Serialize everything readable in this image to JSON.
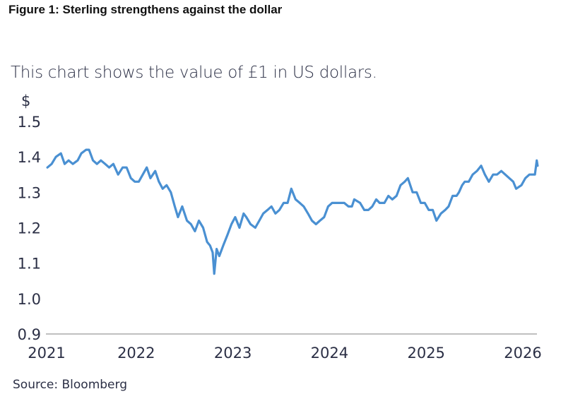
{
  "chart_data": {
    "type": "line",
    "title": "Figure 1: Sterling strengthens against the dollar",
    "subtitle": "This chart shows the value of £1 in US dollars.",
    "ylabel": "$",
    "xlabel": "",
    "source": "Source: Bloomberg",
    "ylim": [
      0.9,
      1.5
    ],
    "yticks": [
      "0.9",
      "1.0",
      "1.1",
      "1.2",
      "1.3",
      "1.4",
      "1.5"
    ],
    "xticks": [
      "2021",
      "2022",
      "2023",
      "2024",
      "2025",
      "2026"
    ],
    "grid": false,
    "line_color": "#4a90d2",
    "series": [
      {
        "x": [
          "2021-01-04",
          "2021-01-20",
          "2021-02-05",
          "2021-02-24",
          "2021-03-10",
          "2021-03-25",
          "2021-04-10",
          "2021-04-28",
          "2021-05-12",
          "2021-05-30",
          "2021-06-10",
          "2021-06-25",
          "2021-07-10",
          "2021-07-25",
          "2021-08-10",
          "2021-08-25",
          "2021-09-10",
          "2021-09-28",
          "2021-10-15",
          "2021-10-30",
          "2021-11-15",
          "2021-11-30",
          "2021-12-15",
          "2021-12-30",
          "2022-01-14",
          "2022-01-28",
          "2022-02-15",
          "2022-03-01",
          "2022-03-15",
          "2022-03-30",
          "2022-04-15",
          "2022-04-30",
          "2022-05-12",
          "2022-05-28",
          "2022-06-15",
          "2022-06-30",
          "2022-07-15",
          "2022-07-30",
          "2022-08-15",
          "2022-08-30",
          "2022-09-10",
          "2022-09-20",
          "2022-09-26",
          "2022-10-05",
          "2022-10-15",
          "2022-10-30",
          "2022-11-15",
          "2022-11-30",
          "2022-12-14",
          "2022-12-30",
          "2023-01-15",
          "2023-01-25",
          "2023-02-10",
          "2023-02-28",
          "2023-03-15",
          "2023-03-30",
          "2023-04-15",
          "2023-04-30",
          "2023-05-15",
          "2023-05-30",
          "2023-06-15",
          "2023-06-30",
          "2023-07-14",
          "2023-07-30",
          "2023-08-15",
          "2023-08-30",
          "2023-09-15",
          "2023-09-30",
          "2023-10-15",
          "2023-10-30",
          "2023-11-15",
          "2023-11-30",
          "2023-12-15",
          "2023-12-30",
          "2024-01-15",
          "2024-01-30",
          "2024-02-15",
          "2024-02-28",
          "2024-03-08",
          "2024-03-30",
          "2024-04-15",
          "2024-04-30",
          "2024-05-15",
          "2024-05-30",
          "2024-06-12",
          "2024-06-30",
          "2024-07-15",
          "2024-07-30",
          "2024-08-15",
          "2024-08-30",
          "2024-09-15",
          "2024-09-27",
          "2024-10-15",
          "2024-10-30",
          "2024-11-15",
          "2024-11-30",
          "2024-12-15",
          "2024-12-30",
          "2025-01-13",
          "2025-01-30",
          "2025-02-15",
          "2025-02-28",
          "2025-03-15",
          "2025-03-30",
          "2025-04-08",
          "2025-04-20",
          "2025-04-30",
          "2025-05-15",
          "2025-05-30",
          "2025-06-15",
          "2025-07-01",
          "2025-07-15",
          "2025-07-30",
          "2025-08-15",
          "2025-08-30",
          "2025-09-15",
          "2025-09-30",
          "2025-10-15",
          "2025-10-30",
          "2025-11-10",
          "2025-11-30",
          "2025-12-15",
          "2025-12-30",
          "2026-01-20",
          "2026-01-27",
          "2026-01-30"
        ],
        "y": [
          1.37,
          1.38,
          1.4,
          1.41,
          1.38,
          1.39,
          1.38,
          1.39,
          1.41,
          1.42,
          1.42,
          1.39,
          1.38,
          1.39,
          1.38,
          1.37,
          1.38,
          1.35,
          1.37,
          1.37,
          1.34,
          1.33,
          1.33,
          1.35,
          1.37,
          1.34,
          1.36,
          1.33,
          1.31,
          1.32,
          1.3,
          1.26,
          1.23,
          1.26,
          1.22,
          1.21,
          1.19,
          1.22,
          1.2,
          1.16,
          1.15,
          1.13,
          1.07,
          1.14,
          1.12,
          1.15,
          1.18,
          1.21,
          1.23,
          1.2,
          1.24,
          1.23,
          1.21,
          1.2,
          1.22,
          1.24,
          1.25,
          1.26,
          1.24,
          1.25,
          1.27,
          1.27,
          1.31,
          1.28,
          1.27,
          1.26,
          1.24,
          1.22,
          1.21,
          1.22,
          1.23,
          1.26,
          1.27,
          1.27,
          1.27,
          1.27,
          1.26,
          1.26,
          1.28,
          1.27,
          1.25,
          1.25,
          1.26,
          1.28,
          1.27,
          1.27,
          1.29,
          1.28,
          1.29,
          1.32,
          1.33,
          1.34,
          1.3,
          1.3,
          1.27,
          1.27,
          1.25,
          1.25,
          1.22,
          1.24,
          1.25,
          1.26,
          1.29,
          1.29,
          1.3,
          1.32,
          1.33,
          1.33,
          1.35,
          1.36,
          1.375,
          1.35,
          1.33,
          1.35,
          1.35,
          1.36,
          1.35,
          1.34,
          1.33,
          1.31,
          1.32,
          1.34,
          1.35,
          1.35,
          1.39,
          1.375
        ]
      }
    ]
  }
}
